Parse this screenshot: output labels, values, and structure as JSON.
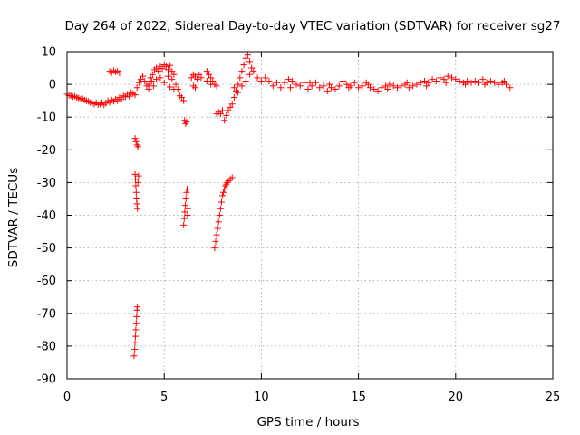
{
  "chart_data": {
    "type": "scatter",
    "title": "Day 264 of 2022, Sidereal Day-to-day VTEC variation (SDTVAR) for receiver sg27",
    "xlabel": "GPS time / hours",
    "ylabel": "SDTVAR / TECUs",
    "xlim": [
      0,
      25
    ],
    "ylim": [
      -90,
      10
    ],
    "xticks": [
      0,
      5,
      10,
      15,
      20,
      25
    ],
    "yticks": [
      10,
      0,
      -10,
      -20,
      -30,
      -40,
      -50,
      -60,
      -70,
      -80,
      -90
    ],
    "grid": true,
    "marker": "+",
    "series": [
      {
        "name": "sg27",
        "color": "#ff0000",
        "points": [
          [
            0.0,
            -3.0
          ],
          [
            0.1,
            -3.4
          ],
          [
            0.2,
            -3.5
          ],
          [
            0.3,
            -3.8
          ],
          [
            0.4,
            -3.6
          ],
          [
            0.5,
            -4.0
          ],
          [
            0.6,
            -4.2
          ],
          [
            0.7,
            -4.5
          ],
          [
            0.8,
            -4.3
          ],
          [
            0.9,
            -4.8
          ],
          [
            1.0,
            -5.0
          ],
          [
            1.1,
            -5.2
          ],
          [
            1.2,
            -5.5
          ],
          [
            1.3,
            -5.8
          ],
          [
            1.4,
            -6.0
          ],
          [
            1.5,
            -5.6
          ],
          [
            1.6,
            -6.2
          ],
          [
            1.7,
            -6.0
          ],
          [
            1.8,
            -5.5
          ],
          [
            1.9,
            -6.3
          ],
          [
            2.0,
            -5.8
          ],
          [
            2.1,
            -5.0
          ],
          [
            2.2,
            -5.5
          ],
          [
            2.3,
            -4.8
          ],
          [
            2.4,
            -5.2
          ],
          [
            2.5,
            -4.5
          ],
          [
            2.6,
            -5.0
          ],
          [
            2.7,
            -4.0
          ],
          [
            2.8,
            -4.6
          ],
          [
            2.9,
            -3.5
          ],
          [
            3.0,
            -3.8
          ],
          [
            3.1,
            -3.0
          ],
          [
            3.2,
            -3.6
          ],
          [
            3.3,
            -2.5
          ],
          [
            3.4,
            -2.8
          ],
          [
            3.5,
            -3.2
          ],
          [
            2.2,
            4.0
          ],
          [
            2.3,
            3.6
          ],
          [
            2.4,
            4.2
          ],
          [
            2.5,
            3.8
          ],
          [
            2.6,
            4.0
          ],
          [
            2.7,
            3.5
          ],
          [
            3.5,
            -16.5
          ],
          [
            3.55,
            -17.5
          ],
          [
            3.6,
            -18.5
          ],
          [
            3.65,
            -19.0
          ],
          [
            3.5,
            -27.5
          ],
          [
            3.52,
            -29
          ],
          [
            3.54,
            -31
          ],
          [
            3.56,
            -33
          ],
          [
            3.58,
            -35
          ],
          [
            3.6,
            -36.5
          ],
          [
            3.62,
            -38
          ],
          [
            3.65,
            -30
          ],
          [
            3.68,
            -28
          ],
          [
            3.45,
            -83
          ],
          [
            3.48,
            -81
          ],
          [
            3.5,
            -79
          ],
          [
            3.52,
            -77
          ],
          [
            3.54,
            -75
          ],
          [
            3.56,
            -73
          ],
          [
            3.58,
            -71
          ],
          [
            3.6,
            -69
          ],
          [
            3.62,
            -68
          ],
          [
            3.6,
            -1.0
          ],
          [
            3.7,
            0.5
          ],
          [
            3.8,
            1.5
          ],
          [
            3.9,
            2.5
          ],
          [
            4.0,
            1.0
          ],
          [
            4.1,
            -0.5
          ],
          [
            4.2,
            0.0
          ],
          [
            4.3,
            2.0
          ],
          [
            4.4,
            3.0
          ],
          [
            4.5,
            4.5
          ],
          [
            4.6,
            5.0
          ],
          [
            4.7,
            4.0
          ],
          [
            4.8,
            5.5
          ],
          [
            4.9,
            4.8
          ],
          [
            5.0,
            6.0
          ],
          [
            5.1,
            5.5
          ],
          [
            5.2,
            4.5
          ],
          [
            5.3,
            5.8
          ],
          [
            5.4,
            4.0
          ],
          [
            5.5,
            3.0
          ],
          [
            4.2,
            -1.5
          ],
          [
            4.35,
            1.0
          ],
          [
            4.45,
            -0.5
          ],
          [
            4.6,
            1.5
          ],
          [
            4.8,
            2.0
          ],
          [
            5.0,
            0.5
          ],
          [
            5.2,
            2.5
          ],
          [
            5.4,
            1.5
          ],
          [
            5.6,
            0.0
          ],
          [
            5.7,
            -1.5
          ],
          [
            5.3,
            -0.8
          ],
          [
            5.5,
            -1.5
          ],
          [
            5.8,
            -3.5
          ],
          [
            5.9,
            -4.0
          ],
          [
            6.0,
            -5.0
          ],
          [
            6.05,
            -11.0
          ],
          [
            6.1,
            -12.0
          ],
          [
            6.15,
            -11.5
          ],
          [
            6.0,
            -43
          ],
          [
            6.03,
            -41
          ],
          [
            6.06,
            -39
          ],
          [
            6.09,
            -37
          ],
          [
            6.12,
            -35
          ],
          [
            6.15,
            -33
          ],
          [
            6.18,
            -32
          ],
          [
            6.2,
            -40
          ],
          [
            6.22,
            -38
          ],
          [
            6.4,
            2.0
          ],
          [
            6.5,
            3.0
          ],
          [
            6.6,
            2.5
          ],
          [
            6.7,
            1.5
          ],
          [
            6.8,
            3.0
          ],
          [
            6.9,
            2.0
          ],
          [
            6.6,
            -1.0
          ],
          [
            6.5,
            -0.5
          ],
          [
            7.2,
            4.0
          ],
          [
            7.3,
            3.0
          ],
          [
            7.4,
            2.0
          ],
          [
            7.5,
            1.0
          ],
          [
            7.6,
            0.0
          ],
          [
            7.7,
            -0.5
          ],
          [
            7.2,
            1.0
          ],
          [
            7.4,
            0.0
          ],
          [
            7.6,
            -50
          ],
          [
            7.65,
            -48
          ],
          [
            7.7,
            -46
          ],
          [
            7.75,
            -44
          ],
          [
            7.8,
            -42
          ],
          [
            7.85,
            -40
          ],
          [
            7.9,
            -38
          ],
          [
            7.95,
            -36
          ],
          [
            8.0,
            -34
          ],
          [
            8.05,
            -33
          ],
          [
            8.1,
            -32
          ],
          [
            8.15,
            -31
          ],
          [
            8.2,
            -30.5
          ],
          [
            8.25,
            -30
          ],
          [
            8.3,
            -29.5
          ],
          [
            8.4,
            -29
          ],
          [
            8.5,
            -28.5
          ],
          [
            7.7,
            -9.0
          ],
          [
            7.8,
            -8.5
          ],
          [
            7.9,
            -9.0
          ],
          [
            8.0,
            -8.0
          ],
          [
            8.1,
            -11.0
          ],
          [
            8.2,
            -9.5
          ],
          [
            8.3,
            -8.0
          ],
          [
            8.4,
            -7.0
          ],
          [
            8.5,
            -6.0
          ],
          [
            8.6,
            -4.0
          ],
          [
            8.7,
            -2.0
          ],
          [
            8.8,
            0.0
          ],
          [
            8.9,
            2.0
          ],
          [
            9.0,
            4.0
          ],
          [
            9.1,
            6.0
          ],
          [
            9.2,
            8.0
          ],
          [
            9.3,
            9.0
          ],
          [
            9.4,
            7.0
          ],
          [
            9.5,
            5.0
          ],
          [
            8.6,
            -1.0
          ],
          [
            8.8,
            -2.5
          ],
          [
            9.0,
            -0.5
          ],
          [
            9.2,
            1.0
          ],
          [
            9.4,
            3.0
          ],
          [
            9.6,
            4.0
          ],
          [
            9.8,
            2.0
          ],
          [
            10.0,
            1.0
          ],
          [
            10.2,
            2.0
          ],
          [
            10.4,
            1.0
          ],
          [
            10.6,
            -0.5
          ],
          [
            10.8,
            0.5
          ],
          [
            11.0,
            -1.0
          ],
          [
            11.2,
            0.5
          ],
          [
            11.4,
            1.5
          ],
          [
            11.6,
            1.0
          ],
          [
            11.8,
            0.0
          ],
          [
            12.0,
            -0.5
          ],
          [
            12.2,
            0.5
          ],
          [
            12.4,
            -1.5
          ],
          [
            12.6,
            -0.5
          ],
          [
            12.8,
            0.5
          ],
          [
            13.0,
            -1.0
          ],
          [
            13.2,
            -0.5
          ],
          [
            13.4,
            -2.0
          ],
          [
            13.6,
            -1.0
          ],
          [
            13.8,
            -1.5
          ],
          [
            14.0,
            -0.5
          ],
          [
            14.2,
            1.0
          ],
          [
            14.4,
            0.0
          ],
          [
            14.6,
            -0.5
          ],
          [
            14.8,
            0.5
          ],
          [
            15.0,
            -1.0
          ],
          [
            15.2,
            -0.5
          ],
          [
            15.4,
            0.5
          ],
          [
            15.6,
            -1.0
          ],
          [
            15.8,
            -1.5
          ],
          [
            16.0,
            -2.0
          ],
          [
            16.2,
            -1.0
          ],
          [
            16.4,
            -0.5
          ],
          [
            16.6,
            0.0
          ],
          [
            16.8,
            -0.5
          ],
          [
            17.0,
            -1.0
          ],
          [
            17.2,
            -0.5
          ],
          [
            17.4,
            0.0
          ],
          [
            17.6,
            -1.0
          ],
          [
            17.8,
            -0.5
          ],
          [
            18.0,
            0.0
          ],
          [
            18.2,
            0.5
          ],
          [
            18.4,
            1.0
          ],
          [
            18.6,
            0.5
          ],
          [
            18.8,
            1.5
          ],
          [
            19.0,
            1.0
          ],
          [
            19.2,
            2.0
          ],
          [
            19.4,
            1.5
          ],
          [
            19.6,
            2.5
          ],
          [
            19.8,
            2.0
          ],
          [
            20.0,
            1.5
          ],
          [
            20.2,
            1.0
          ],
          [
            20.4,
            0.5
          ],
          [
            20.6,
            1.0
          ],
          [
            20.8,
            0.5
          ],
          [
            21.0,
            1.0
          ],
          [
            21.2,
            0.5
          ],
          [
            21.4,
            1.5
          ],
          [
            21.6,
            0.5
          ],
          [
            21.8,
            1.0
          ],
          [
            22.0,
            0.5
          ],
          [
            22.2,
            0.0
          ],
          [
            22.4,
            0.5
          ],
          [
            22.6,
            0.0
          ],
          [
            22.8,
            -1.0
          ],
          [
            11.5,
            -1.0
          ],
          [
            12.5,
            0.5
          ],
          [
            13.5,
            0.0
          ],
          [
            14.5,
            -1.0
          ],
          [
            15.5,
            0.0
          ],
          [
            16.5,
            -1.5
          ],
          [
            17.5,
            0.5
          ],
          [
            18.5,
            -0.5
          ],
          [
            19.5,
            0.5
          ],
          [
            20.5,
            0.0
          ],
          [
            21.5,
            0.0
          ],
          [
            22.5,
            1.0
          ]
        ]
      }
    ]
  }
}
